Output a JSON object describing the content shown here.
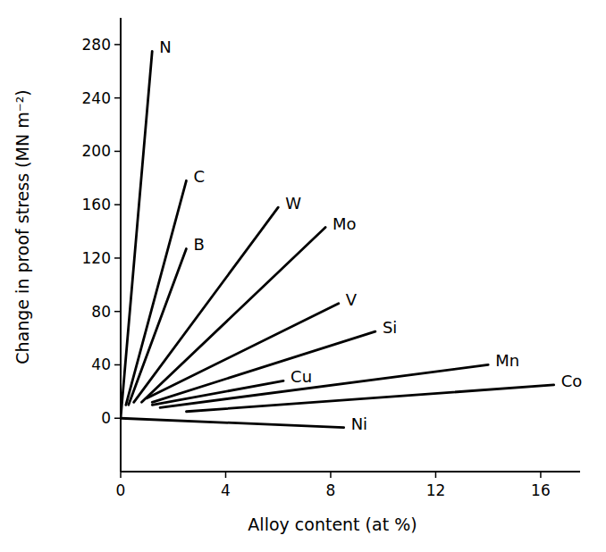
{
  "chart_data": {
    "type": "line",
    "color": "#000000",
    "x_label": "Alloy content (at %)",
    "y_label": "Change in proof stress (MN m⁻²)",
    "xlim": [
      0,
      17.5
    ],
    "xticks": [
      0,
      4,
      8,
      12,
      16
    ],
    "ylim": [
      -40,
      300
    ],
    "yticks": [
      0,
      40,
      80,
      120,
      160,
      200,
      240,
      280
    ],
    "series": [
      {
        "name": "N",
        "x": [
          0,
          1.2
        ],
        "values": [
          0,
          275
        ]
      },
      {
        "name": "C",
        "x": [
          0.2,
          2.5
        ],
        "values": [
          10,
          178
        ]
      },
      {
        "name": "B",
        "x": [
          0.3,
          2.5
        ],
        "values": [
          10,
          127
        ]
      },
      {
        "name": "W",
        "x": [
          0.5,
          6
        ],
        "values": [
          12,
          158
        ]
      },
      {
        "name": "Mo",
        "x": [
          0.8,
          7.8
        ],
        "values": [
          12,
          143
        ]
      },
      {
        "name": "V",
        "x": [
          1,
          8.3
        ],
        "values": [
          15,
          86
        ]
      },
      {
        "name": "Si",
        "x": [
          1.2,
          9.7
        ],
        "values": [
          12,
          65
        ]
      },
      {
        "name": "Cu",
        "x": [
          1.2,
          6.2
        ],
        "values": [
          10,
          28
        ]
      },
      {
        "name": "Mn",
        "x": [
          1.5,
          14
        ],
        "values": [
          8,
          40
        ]
      },
      {
        "name": "Co",
        "x": [
          2.5,
          16.5
        ],
        "values": [
          5,
          25
        ]
      },
      {
        "name": "Ni",
        "x": [
          0,
          8.5
        ],
        "values": [
          0,
          -7
        ]
      }
    ]
  }
}
